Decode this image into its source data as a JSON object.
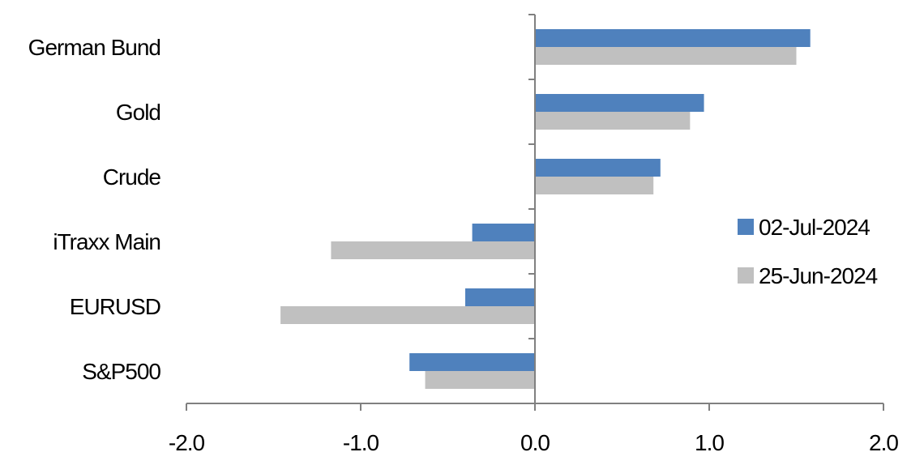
{
  "chart_data": {
    "type": "bar",
    "orientation": "horizontal",
    "categories": [
      "German Bund",
      "Gold",
      "Crude",
      "iTraxx Main",
      "EURUSD",
      "S&P500"
    ],
    "series": [
      {
        "name": "02-Jul-2024",
        "color": "#4f81bd",
        "values": [
          1.58,
          0.97,
          0.72,
          -0.36,
          -0.4,
          -0.72
        ]
      },
      {
        "name": "25-Jun-2024",
        "color": "#c0c0c0",
        "values": [
          1.5,
          0.89,
          0.68,
          -1.17,
          -1.46,
          -0.63
        ]
      }
    ],
    "xlim": [
      -2.0,
      2.0
    ],
    "xticks": [
      "-2.0",
      "-1.0",
      "0.0",
      "1.0",
      "2.0"
    ],
    "xtick_values": [
      -2,
      -1,
      0,
      1,
      2
    ],
    "grid": false,
    "legend_position": "right"
  }
}
